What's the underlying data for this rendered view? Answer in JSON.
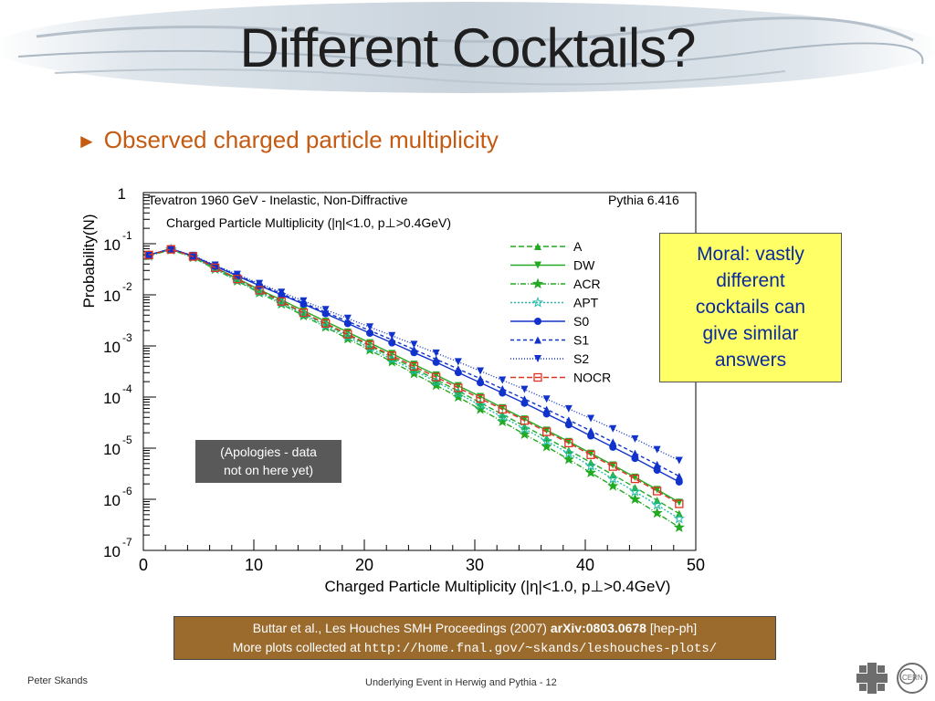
{
  "slide": {
    "title": "Different Cocktails?",
    "bullet": "Observed charged particle multiplicity",
    "moral_lines": [
      "Moral: vastly",
      "different",
      "cocktails can",
      "give similar",
      "answers"
    ],
    "apology_lines": [
      "(Apologies - data",
      "not on here yet)"
    ],
    "reference": {
      "line1_pre": "Buttar et al., Les Houches SMH Proceedings (2007) ",
      "line1_bold": "arXiv:0803.0678",
      "line1_post": " [hep-ph]",
      "line2_pre": "More plots collected at ",
      "line2_url": "http://home.fnal.gov/~skands/leshouches-plots/"
    },
    "footer_left": "Peter Skands",
    "footer_center": "Underlying Event in Herwig and Pythia - 12"
  },
  "chart_data": {
    "type": "line",
    "title_left": "Tevatron 1960 GeV - Inelastic, Non-Diffractive",
    "title_right": "Pythia 6.416",
    "subtitle": "Charged Particle  Multiplicity (|η|<1.0, p⊥>0.4GeV)",
    "xlabel": "Charged Particle Multiplicity (|η|<1.0, p⊥>0.4GeV)",
    "ylabel": "Probability(N)",
    "xlim": [
      0,
      50
    ],
    "ylim_log10": [
      -7,
      0
    ],
    "log_y": true,
    "x_ticks": [
      0,
      10,
      20,
      30,
      40,
      50
    ],
    "y_ticks": [
      {
        "base": "1",
        "exp": ""
      },
      {
        "base": "10",
        "exp": "-1"
      },
      {
        "base": "10",
        "exp": "-2"
      },
      {
        "base": "10",
        "exp": "-3"
      },
      {
        "base": "10",
        "exp": "-4"
      },
      {
        "base": "10",
        "exp": "-5"
      },
      {
        "base": "10",
        "exp": "-6"
      },
      {
        "base": "10",
        "exp": "-7"
      }
    ],
    "legend_position": "upper-right",
    "series": [
      {
        "name": "A",
        "color": "#22aa22",
        "dash": "6,3",
        "marker": "triangle-up",
        "x": [
          0.5,
          2.5,
          4.5,
          6.5,
          8.5,
          10.5,
          12.5,
          14.5,
          16.5,
          18.5,
          20.5,
          22.5,
          24.5,
          26.5,
          28.5,
          30.5,
          32.5,
          34.5,
          36.5,
          38.5,
          40.5,
          42.5,
          44.5,
          46.5,
          48.5
        ],
        "log10_y": [
          -1.23,
          -1.11,
          -1.25,
          -1.48,
          -1.7,
          -1.93,
          -2.14,
          -2.36,
          -2.57,
          -2.79,
          -3.0,
          -3.22,
          -3.44,
          -3.66,
          -3.88,
          -4.11,
          -4.34,
          -4.57,
          -4.8,
          -5.04,
          -5.28,
          -5.52,
          -5.77,
          -6.02,
          -6.28
        ]
      },
      {
        "name": "DW",
        "color": "#22aa22",
        "dash": "",
        "marker": "triangle-down",
        "x": [
          0.5,
          2.5,
          4.5,
          6.5,
          8.5,
          10.5,
          12.5,
          14.5,
          16.5,
          18.5,
          20.5,
          22.5,
          24.5,
          26.5,
          28.5,
          30.5,
          32.5,
          34.5,
          36.5,
          38.5,
          40.5,
          42.5,
          44.5,
          46.5,
          48.5
        ],
        "log10_y": [
          -1.22,
          -1.1,
          -1.25,
          -1.47,
          -1.68,
          -1.9,
          -2.1,
          -2.31,
          -2.52,
          -2.73,
          -2.94,
          -3.15,
          -3.36,
          -3.57,
          -3.78,
          -3.99,
          -4.21,
          -4.43,
          -4.65,
          -4.87,
          -5.1,
          -5.33,
          -5.57,
          -5.81,
          -6.06
        ]
      },
      {
        "name": "ACR",
        "color": "#22aa22",
        "dash": "6,2,1,2",
        "marker": "star",
        "x": [
          0.5,
          2.5,
          4.5,
          6.5,
          8.5,
          10.5,
          12.5,
          14.5,
          16.5,
          18.5,
          20.5,
          22.5,
          24.5,
          26.5,
          28.5,
          30.5,
          32.5,
          34.5,
          36.5,
          38.5,
          40.5,
          42.5,
          44.5,
          46.5,
          48.5
        ],
        "log10_y": [
          -1.24,
          -1.12,
          -1.27,
          -1.5,
          -1.73,
          -1.96,
          -2.18,
          -2.41,
          -2.63,
          -2.86,
          -3.08,
          -3.31,
          -3.54,
          -3.77,
          -4.0,
          -4.24,
          -4.48,
          -4.73,
          -4.97,
          -5.22,
          -5.48,
          -5.74,
          -6.0,
          -6.27,
          -6.55
        ]
      },
      {
        "name": "APT",
        "color": "#22bbaa",
        "dash": "2,2",
        "marker": "star-open",
        "x": [
          0.5,
          2.5,
          4.5,
          6.5,
          8.5,
          10.5,
          12.5,
          14.5,
          16.5,
          18.5,
          20.5,
          22.5,
          24.5,
          26.5,
          28.5,
          30.5,
          32.5,
          34.5,
          36.5,
          38.5,
          40.5,
          42.5,
          44.5,
          46.5,
          48.5
        ],
        "log10_y": [
          -1.23,
          -1.11,
          -1.26,
          -1.49,
          -1.71,
          -1.94,
          -2.16,
          -2.38,
          -2.6,
          -2.82,
          -3.04,
          -3.26,
          -3.48,
          -3.7,
          -3.93,
          -4.16,
          -4.39,
          -4.62,
          -4.86,
          -5.1,
          -5.35,
          -5.6,
          -5.85,
          -6.11,
          -6.38
        ]
      },
      {
        "name": "S0",
        "color": "#1133cc",
        "dash": "",
        "marker": "circle",
        "x": [
          0.5,
          2.5,
          4.5,
          6.5,
          8.5,
          10.5,
          12.5,
          14.5,
          16.5,
          18.5,
          20.5,
          22.5,
          24.5,
          26.5,
          28.5,
          30.5,
          32.5,
          34.5,
          36.5,
          38.5,
          40.5,
          42.5,
          44.5,
          46.5,
          48.5
        ],
        "log10_y": [
          -1.22,
          -1.1,
          -1.24,
          -1.44,
          -1.63,
          -1.82,
          -2.0,
          -2.18,
          -2.37,
          -2.56,
          -2.75,
          -2.94,
          -3.13,
          -3.32,
          -3.52,
          -3.72,
          -3.92,
          -4.12,
          -4.33,
          -4.54,
          -4.76,
          -4.98,
          -5.2,
          -5.43,
          -5.66
        ]
      },
      {
        "name": "S1",
        "color": "#1133cc",
        "dash": "4,3",
        "marker": "triangle-up",
        "x": [
          0.5,
          2.5,
          4.5,
          6.5,
          8.5,
          10.5,
          12.5,
          14.5,
          16.5,
          18.5,
          20.5,
          22.5,
          24.5,
          26.5,
          28.5,
          30.5,
          32.5,
          34.5,
          36.5,
          38.5,
          40.5,
          42.5,
          44.5,
          46.5,
          48.5
        ],
        "log10_y": [
          -1.22,
          -1.1,
          -1.24,
          -1.43,
          -1.62,
          -1.8,
          -1.98,
          -2.16,
          -2.34,
          -2.52,
          -2.7,
          -2.88,
          -3.07,
          -3.26,
          -3.45,
          -3.64,
          -3.84,
          -4.04,
          -4.24,
          -4.45,
          -4.66,
          -4.88,
          -5.1,
          -5.32,
          -5.55
        ]
      },
      {
        "name": "S2",
        "color": "#1133cc",
        "dash": "1,2",
        "marker": "triangle-down",
        "x": [
          0.5,
          2.5,
          4.5,
          6.5,
          8.5,
          10.5,
          12.5,
          14.5,
          16.5,
          18.5,
          20.5,
          22.5,
          24.5,
          26.5,
          28.5,
          30.5,
          32.5,
          34.5,
          36.5,
          38.5,
          40.5,
          42.5,
          44.5,
          46.5,
          48.5
        ],
        "log10_y": [
          -1.22,
          -1.1,
          -1.23,
          -1.42,
          -1.6,
          -1.78,
          -1.95,
          -2.12,
          -2.29,
          -2.46,
          -2.63,
          -2.8,
          -2.97,
          -3.14,
          -3.31,
          -3.49,
          -3.67,
          -3.85,
          -4.04,
          -4.23,
          -4.42,
          -4.62,
          -4.82,
          -5.03,
          -5.24
        ]
      },
      {
        "name": "NOCR",
        "color": "#dd3322",
        "dash": "6,3",
        "marker": "square-open",
        "x": [
          0.5,
          2.5,
          4.5,
          6.5,
          8.5,
          10.5,
          12.5,
          14.5,
          16.5,
          18.5,
          20.5,
          22.5,
          24.5,
          26.5,
          28.5,
          30.5,
          32.5,
          34.5,
          36.5,
          38.5,
          40.5,
          42.5,
          44.5,
          46.5,
          48.5
        ],
        "log10_y": [
          -1.22,
          -1.11,
          -1.25,
          -1.47,
          -1.69,
          -1.91,
          -2.13,
          -2.35,
          -2.56,
          -2.77,
          -2.98,
          -3.19,
          -3.4,
          -3.61,
          -3.82,
          -4.03,
          -4.24,
          -4.46,
          -4.68,
          -4.9,
          -5.13,
          -5.36,
          -5.6,
          -5.84,
          -6.09
        ]
      }
    ]
  }
}
